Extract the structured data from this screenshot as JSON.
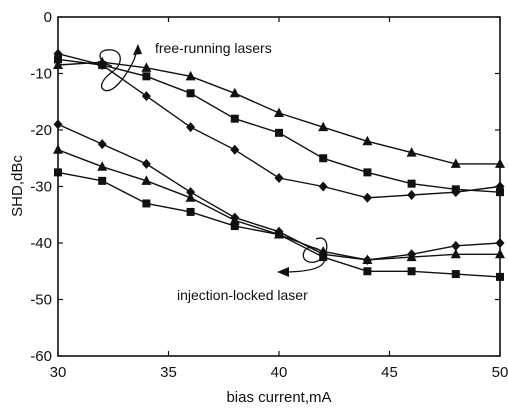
{
  "chart_data": {
    "type": "line",
    "xlabel": "bias current,mA",
    "ylabel": "SHD,dBc",
    "xlim": [
      30,
      50
    ],
    "ylim": [
      -60,
      0
    ],
    "xticks": [
      30,
      35,
      40,
      45,
      50
    ],
    "yticks": [
      0,
      -10,
      -20,
      -30,
      -40,
      -50,
      -60
    ],
    "grid": false,
    "annotations": [
      "free-running lasers",
      "injection-locked laser"
    ],
    "series": [
      {
        "marker": "triangle",
        "group": "free-running",
        "x": [
          30,
          32,
          34,
          36,
          38,
          40,
          42,
          44,
          46,
          48,
          50
        ],
        "y": [
          -8.5,
          -8,
          -9,
          -10.5,
          -13.5,
          -17,
          -19.5,
          -22,
          -24,
          -26,
          -26
        ]
      },
      {
        "marker": "square",
        "group": "free-running",
        "x": [
          30,
          32,
          34,
          36,
          38,
          40,
          42,
          44,
          46,
          48,
          50
        ],
        "y": [
          -7.5,
          -8.5,
          -10.5,
          -13.5,
          -18,
          -20.5,
          -25,
          -27.5,
          -29.5,
          -30.5,
          -31
        ]
      },
      {
        "marker": "diamond",
        "group": "free-running",
        "x": [
          30,
          32,
          34,
          36,
          38,
          40,
          42,
          44,
          46,
          48,
          50
        ],
        "y": [
          -6.5,
          -8.5,
          -14,
          -19.5,
          -23.5,
          -28.5,
          -30,
          -32,
          -31.5,
          -31,
          -30
        ]
      },
      {
        "marker": "diamond",
        "group": "injection-locked",
        "x": [
          30,
          32,
          34,
          36,
          38,
          40,
          42,
          44,
          46,
          48,
          50
        ],
        "y": [
          -19,
          -22.5,
          -26,
          -31,
          -35.5,
          -38,
          -42,
          -43,
          -42,
          -40.5,
          -40
        ]
      },
      {
        "marker": "triangle",
        "group": "injection-locked",
        "x": [
          30,
          32,
          34,
          36,
          38,
          40,
          42,
          44,
          46,
          48,
          50
        ],
        "y": [
          -23.5,
          -26.5,
          -29,
          -32,
          -36,
          -38.5,
          -41.5,
          -43,
          -42.5,
          -42,
          -42
        ]
      },
      {
        "marker": "square",
        "group": "injection-locked",
        "x": [
          30,
          32,
          34,
          36,
          38,
          40,
          42,
          44,
          46,
          48,
          50
        ],
        "y": [
          -27.5,
          -29,
          -33,
          -34.5,
          -37,
          -38.5,
          -42.5,
          -45,
          -45,
          -45.5,
          -46
        ]
      }
    ]
  }
}
